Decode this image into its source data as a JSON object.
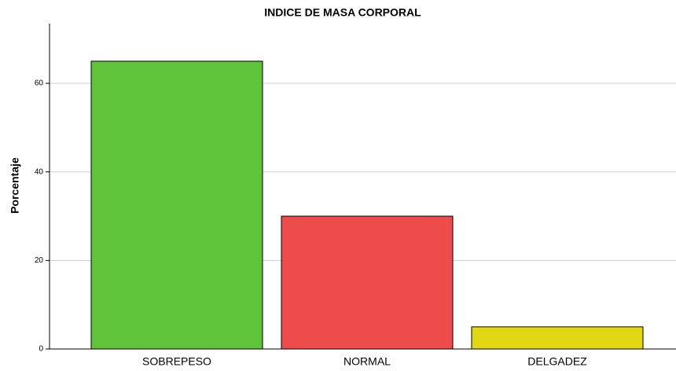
{
  "chart_data": {
    "type": "bar",
    "title": "INDICE DE MASA CORPORAL",
    "y_label": "Porcentaje",
    "categories": [
      "SOBREPESO",
      "NORMAL",
      "DELGADEZ"
    ],
    "values": [
      65,
      30,
      5
    ],
    "colors": [
      "#5fc43a",
      "#ee4b4b",
      "#e2d715"
    ],
    "ylim": [
      0,
      73.5
    ],
    "yticks": [
      0,
      20,
      40,
      60
    ],
    "grid": true
  }
}
